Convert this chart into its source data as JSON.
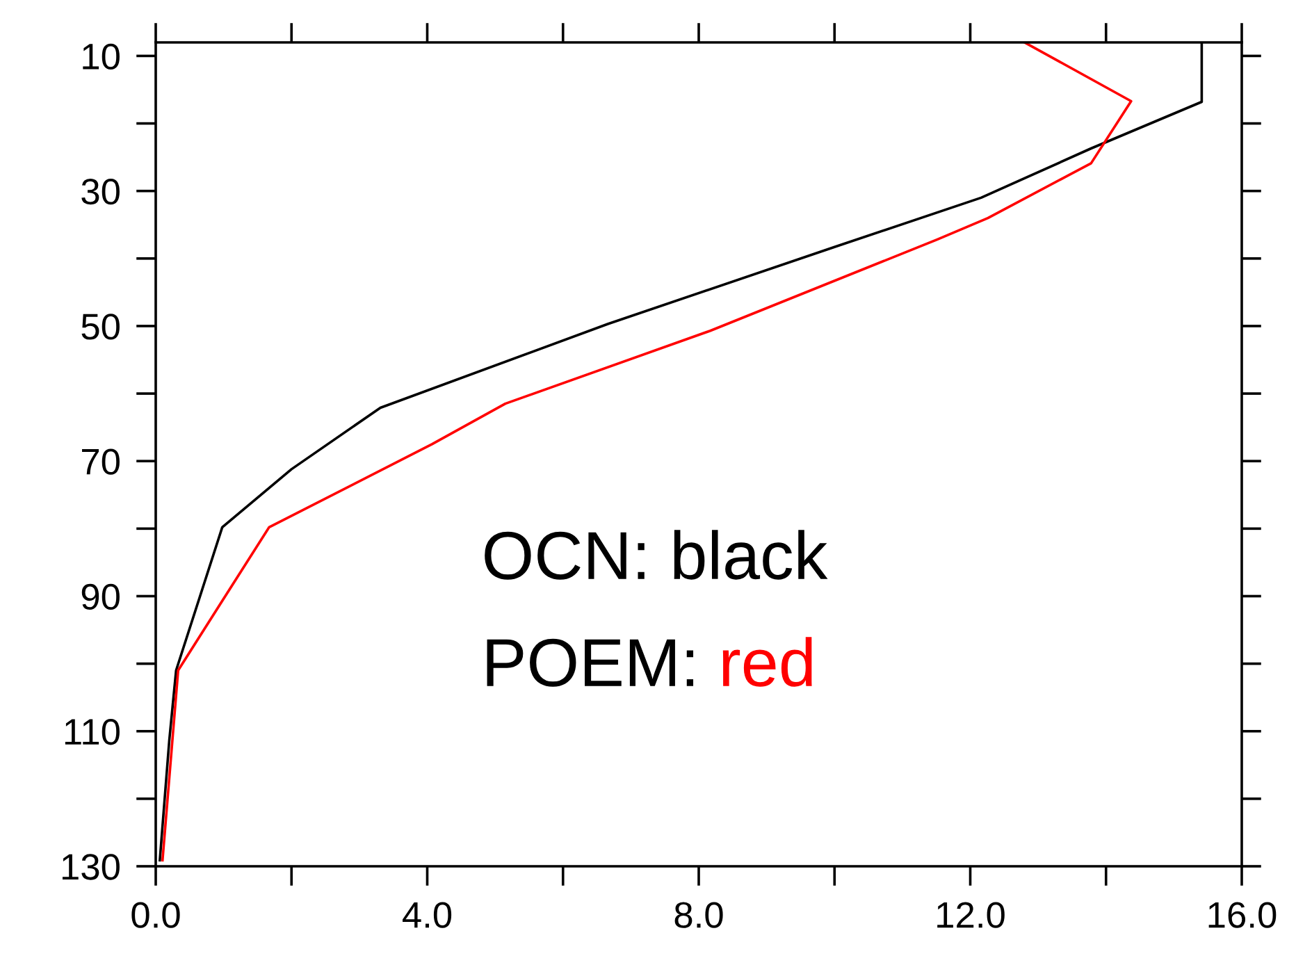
{
  "chart_data": {
    "type": "line",
    "series": [
      {
        "color": "#000000",
        "x": [
          15.41,
          15.41,
          13.78,
          12.16,
          10.0,
          6.66,
          3.31,
          2.0,
          0.98,
          0.3,
          0.2,
          0.06
        ],
        "values": [
          8,
          16.8,
          23.7,
          31.0,
          38.3,
          49.7,
          62.1,
          71.2,
          79.8,
          101.0,
          111.3,
          129.1
        ]
      },
      {
        "color": "#ff0000",
        "x": [
          12.8,
          14.37,
          13.78,
          12.26,
          11.51,
          8.17,
          5.15,
          4.07,
          1.67,
          0.98,
          0.33,
          0.1
        ],
        "values": [
          8,
          16.7,
          25.9,
          34.0,
          37.2,
          50.7,
          61.5,
          67.5,
          79.8,
          90.7,
          101.0,
          129.1
        ]
      }
    ],
    "xlim": [
      0,
      16
    ],
    "ylim": [
      130,
      8
    ],
    "xticks": [
      {
        "value": 0,
        "label": "0.0"
      },
      {
        "value": 2,
        "label": null
      },
      {
        "value": 4,
        "label": "4.0"
      },
      {
        "value": 6,
        "label": null
      },
      {
        "value": 8,
        "label": "8.0"
      },
      {
        "value": 10,
        "label": null
      },
      {
        "value": 12,
        "label": "12.0"
      },
      {
        "value": 14,
        "label": null
      },
      {
        "value": 16,
        "label": "16.0"
      }
    ],
    "yticks": [
      10,
      {
        "value": 20,
        "label": null
      },
      30,
      {
        "value": 40,
        "label": null
      },
      50,
      {
        "value": 60,
        "label": null
      },
      70,
      {
        "value": 80,
        "label": null
      },
      90,
      {
        "value": 100,
        "label": null
      },
      110,
      {
        "value": 120,
        "label": null
      },
      130
    ],
    "grid": false,
    "legend": false,
    "marker": "none",
    "line_style": "solid",
    "annotations": [
      "OCN: black",
      "POEM: red"
    ]
  }
}
